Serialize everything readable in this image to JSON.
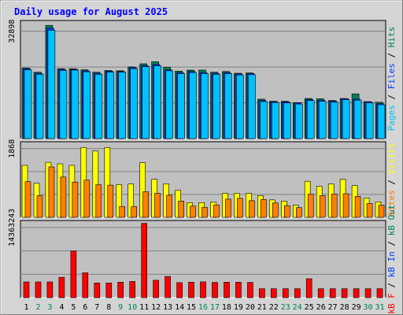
{
  "chart_data": [
    {
      "type": "bar",
      "title": "Daily usage for August 2025",
      "categories": [
        "1",
        "2",
        "3",
        "4",
        "5",
        "6",
        "7",
        "8",
        "9",
        "10",
        "11",
        "12",
        "13",
        "14",
        "15",
        "16",
        "17",
        "18",
        "19",
        "20",
        "21",
        "22",
        "23",
        "24",
        "25",
        "26",
        "27",
        "28",
        "29",
        "30",
        "31"
      ],
      "weekend_days": [
        "2",
        "3",
        "9",
        "10",
        "16",
        "17",
        "23",
        "24",
        "30",
        "31"
      ],
      "ymax_label": "32898",
      "ylim": [
        0,
        32898
      ],
      "series": [
        {
          "name": "Hits",
          "color": "#00805c",
          "values": [
            20200,
            19000,
            32400,
            20000,
            20000,
            19700,
            19000,
            19500,
            19400,
            20500,
            21400,
            22000,
            20400,
            19300,
            19600,
            19600,
            19000,
            19200,
            18700,
            18800,
            11300,
            10700,
            10700,
            10300,
            11500,
            11400,
            10900,
            11500,
            12800,
            10600,
            10400
          ]
        },
        {
          "name": "Files",
          "color": "#0040ff",
          "values": [
            20000,
            18700,
            31600,
            19800,
            19800,
            19400,
            18700,
            19300,
            19200,
            20300,
            20900,
            21200,
            19700,
            18900,
            19200,
            18900,
            18700,
            18900,
            18500,
            18600,
            10900,
            10600,
            10500,
            10200,
            11200,
            11000,
            10700,
            11400,
            11300,
            10500,
            10000
          ]
        },
        {
          "name": "Pages",
          "color": "#00c0ff",
          "values": [
            19700,
            18400,
            31000,
            19500,
            19600,
            19100,
            18400,
            19000,
            19000,
            20000,
            20600,
            20800,
            19400,
            18600,
            18900,
            18600,
            18400,
            18600,
            18200,
            18300,
            10600,
            10300,
            10200,
            9900,
            10900,
            10700,
            10400,
            11100,
            11000,
            10200,
            9700
          ]
        }
      ],
      "series_label_colors": {
        "Hits": "#00805c",
        "Files": "#0040ff",
        "Pages": "#00c0ff"
      }
    },
    {
      "type": "bar",
      "ymax_label": "1868",
      "ylim": [
        0,
        1868
      ],
      "series": [
        {
          "name": "Visits",
          "color": "#ffff00",
          "values": [
            1340,
            880,
            1420,
            1380,
            1340,
            1800,
            1710,
            1800,
            840,
            860,
            1410,
            980,
            860,
            700,
            380,
            380,
            390,
            620,
            620,
            620,
            560,
            450,
            420,
            310,
            930,
            800,
            860,
            980,
            820,
            500,
            400
          ]
        },
        {
          "name": "Sites",
          "color": "#ff8000",
          "values": [
            920,
            560,
            1300,
            1040,
            910,
            960,
            840,
            830,
            280,
            280,
            660,
            620,
            570,
            420,
            290,
            260,
            320,
            470,
            490,
            430,
            460,
            370,
            300,
            250,
            600,
            560,
            600,
            610,
            540,
            360,
            310
          ]
        }
      ],
      "series_label_colors": {
        "Visits": "#ff8000",
        "Sites": "#ff8000"
      }
    },
    {
      "type": "bar",
      "ymax_label": "14363243",
      "ylim": [
        0,
        14363243
      ],
      "series": [
        {
          "name": "kB F",
          "color": "#ff0000",
          "values": [
            3060000,
            3060000,
            3060000,
            3940000,
            9040000,
            4830000,
            2860000,
            2860000,
            2990000,
            3150000,
            14430000,
            3380000,
            4110000,
            2920000,
            2990000,
            3070000,
            2970000,
            3000000,
            2990000,
            2960000,
            1740000,
            1740000,
            1740000,
            1740000,
            3670000,
            1740000,
            1740000,
            1740000,
            1740000,
            1740000,
            1740000
          ]
        }
      ],
      "series_label_colors": {
        "kB F": "#ff0000",
        "kB Out": "#00805c",
        "kB In": "#0040ff"
      }
    }
  ],
  "right_labels": {
    "top": [
      {
        "text": "Pages",
        "color": "#00c0ff"
      },
      {
        "text": " / ",
        "color": "#000000"
      },
      {
        "text": "Files",
        "color": "#0040ff"
      },
      {
        "text": " / ",
        "color": "#000000"
      },
      {
        "text": "Hits",
        "color": "#00805c"
      }
    ],
    "middle": [
      {
        "text": "Sites",
        "color": "#ff8000"
      },
      {
        "text": " / ",
        "color": "#000000"
      },
      {
        "text": "Visits",
        "color": "#ffff00"
      }
    ],
    "bottom": [
      {
        "text": "kB F",
        "color": "#ff0000"
      },
      {
        "text": " / ",
        "color": "#000000"
      },
      {
        "text": "kB In",
        "color": "#0040ff"
      },
      {
        "text": " / ",
        "color": "#000000"
      },
      {
        "text": "kB Out",
        "color": "#00805c"
      }
    ]
  },
  "colors": {
    "title": "#0000ff",
    "weekday_label": "#000000",
    "weekend_label": "#00805c",
    "panel_bg": "#c0c0c0",
    "frame_bg": "#d4d4d4"
  }
}
